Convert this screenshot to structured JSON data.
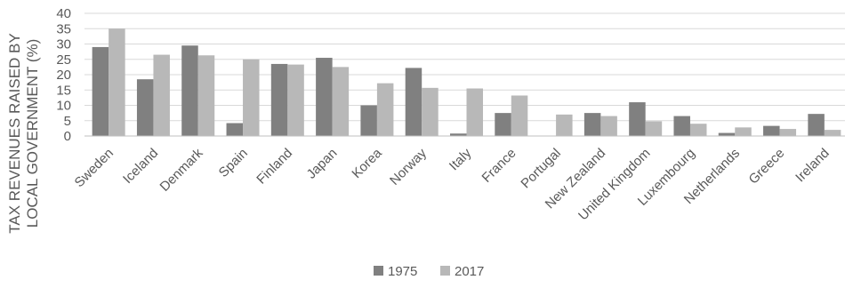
{
  "chart_data": {
    "type": "bar",
    "ylabel_lines": [
      "TAX REVENUES RAISED BY",
      "LOCAL GOVERNMENT (%)"
    ],
    "ylim": [
      0,
      40
    ],
    "yticks": [
      "0",
      "5",
      "10",
      "15",
      "20",
      "25",
      "30",
      "35",
      "40"
    ],
    "grid": true,
    "legend_position": "bottom",
    "categories": [
      "Sweden",
      "Iceland",
      "Denmark",
      "Spain",
      "Finland",
      "Japan",
      "Korea",
      "Norway",
      "Italy",
      "France",
      "Portugal",
      "New Zealand",
      "United Kingdom",
      "Luxembourg",
      "Netherlands",
      "Greece",
      "Ireland"
    ],
    "series": [
      {
        "name": "1975",
        "color": "#808080",
        "values": [
          29,
          18.5,
          29.5,
          4.2,
          23.5,
          25.5,
          10,
          22.2,
          0.8,
          7.5,
          0,
          7.5,
          11,
          6.5,
          1,
          3.3,
          7.2
        ]
      },
      {
        "name": "2017",
        "color": "#b8b8b8",
        "values": [
          35,
          26.5,
          26.3,
          25,
          23.3,
          22.5,
          17.2,
          15.7,
          15.5,
          13.2,
          7,
          6.5,
          4.8,
          4,
          2.8,
          2.3,
          2
        ]
      }
    ]
  }
}
